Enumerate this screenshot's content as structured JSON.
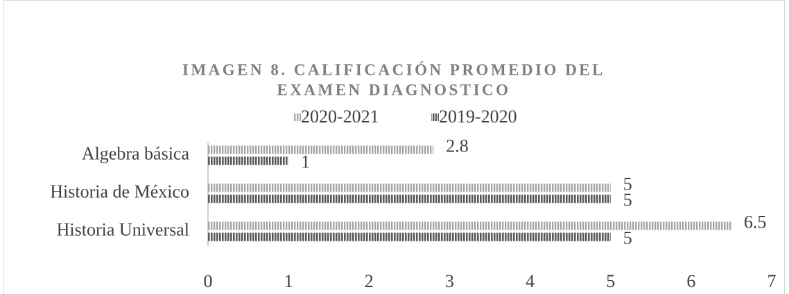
{
  "chart_data": {
    "type": "bar",
    "orientation": "horizontal",
    "title": [
      "IMAGEN 8. CALIFICACIÓN PROMEDIO DEL",
      "EXAMEN DIAGNOSTICO"
    ],
    "categories": [
      "Algebra básica",
      "Historia de México",
      "Historia Universal"
    ],
    "series": [
      {
        "name": "2020-2021",
        "color": "#a6a6a6",
        "values": [
          2.8,
          5,
          6.5
        ]
      },
      {
        "name": "2019-2020",
        "color": "#595959",
        "values": [
          1,
          5,
          5
        ]
      }
    ],
    "xlim": [
      0,
      7
    ],
    "xticks": [
      0,
      1,
      2,
      3,
      4,
      5,
      6,
      7
    ],
    "grid": false,
    "legend": "top"
  }
}
